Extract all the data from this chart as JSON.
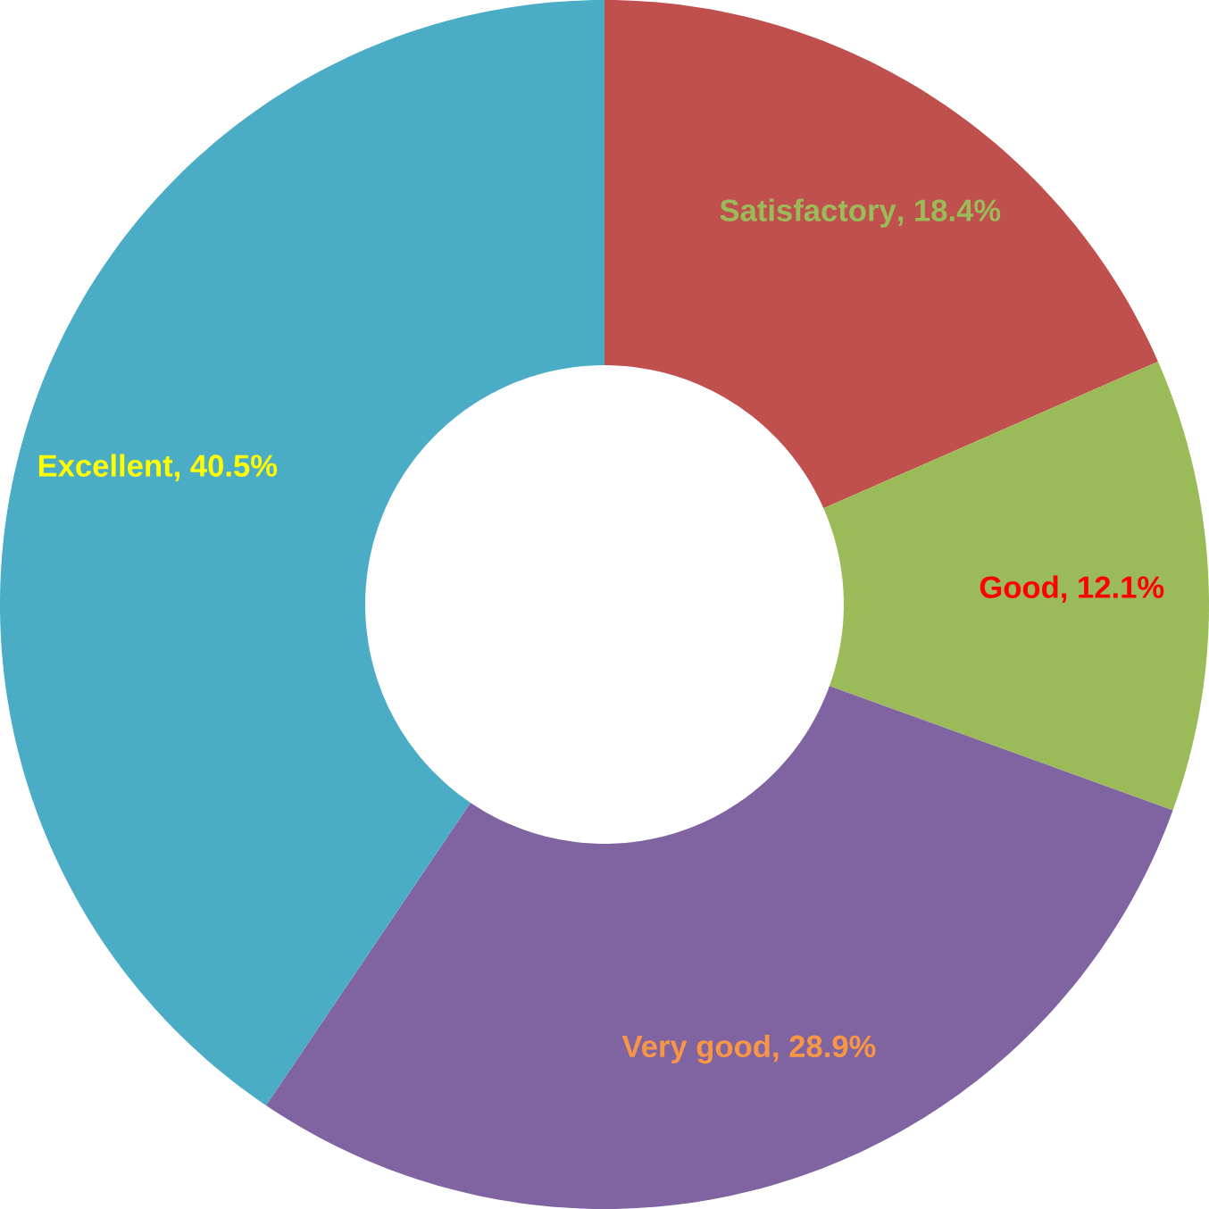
{
  "chart_data": {
    "type": "donut",
    "categories": [
      "Satisfactory",
      "Good",
      "Very good",
      "Excellent"
    ],
    "values": [
      18.4,
      12.1,
      28.9,
      40.5
    ],
    "value_labels": [
      ", 18.4%",
      ", 12.1%",
      ", 28.9%",
      ", 40.5%"
    ],
    "colors": [
      "#c0504d",
      "#9bbb59",
      "#8064a2",
      "#4bacc6"
    ]
  }
}
